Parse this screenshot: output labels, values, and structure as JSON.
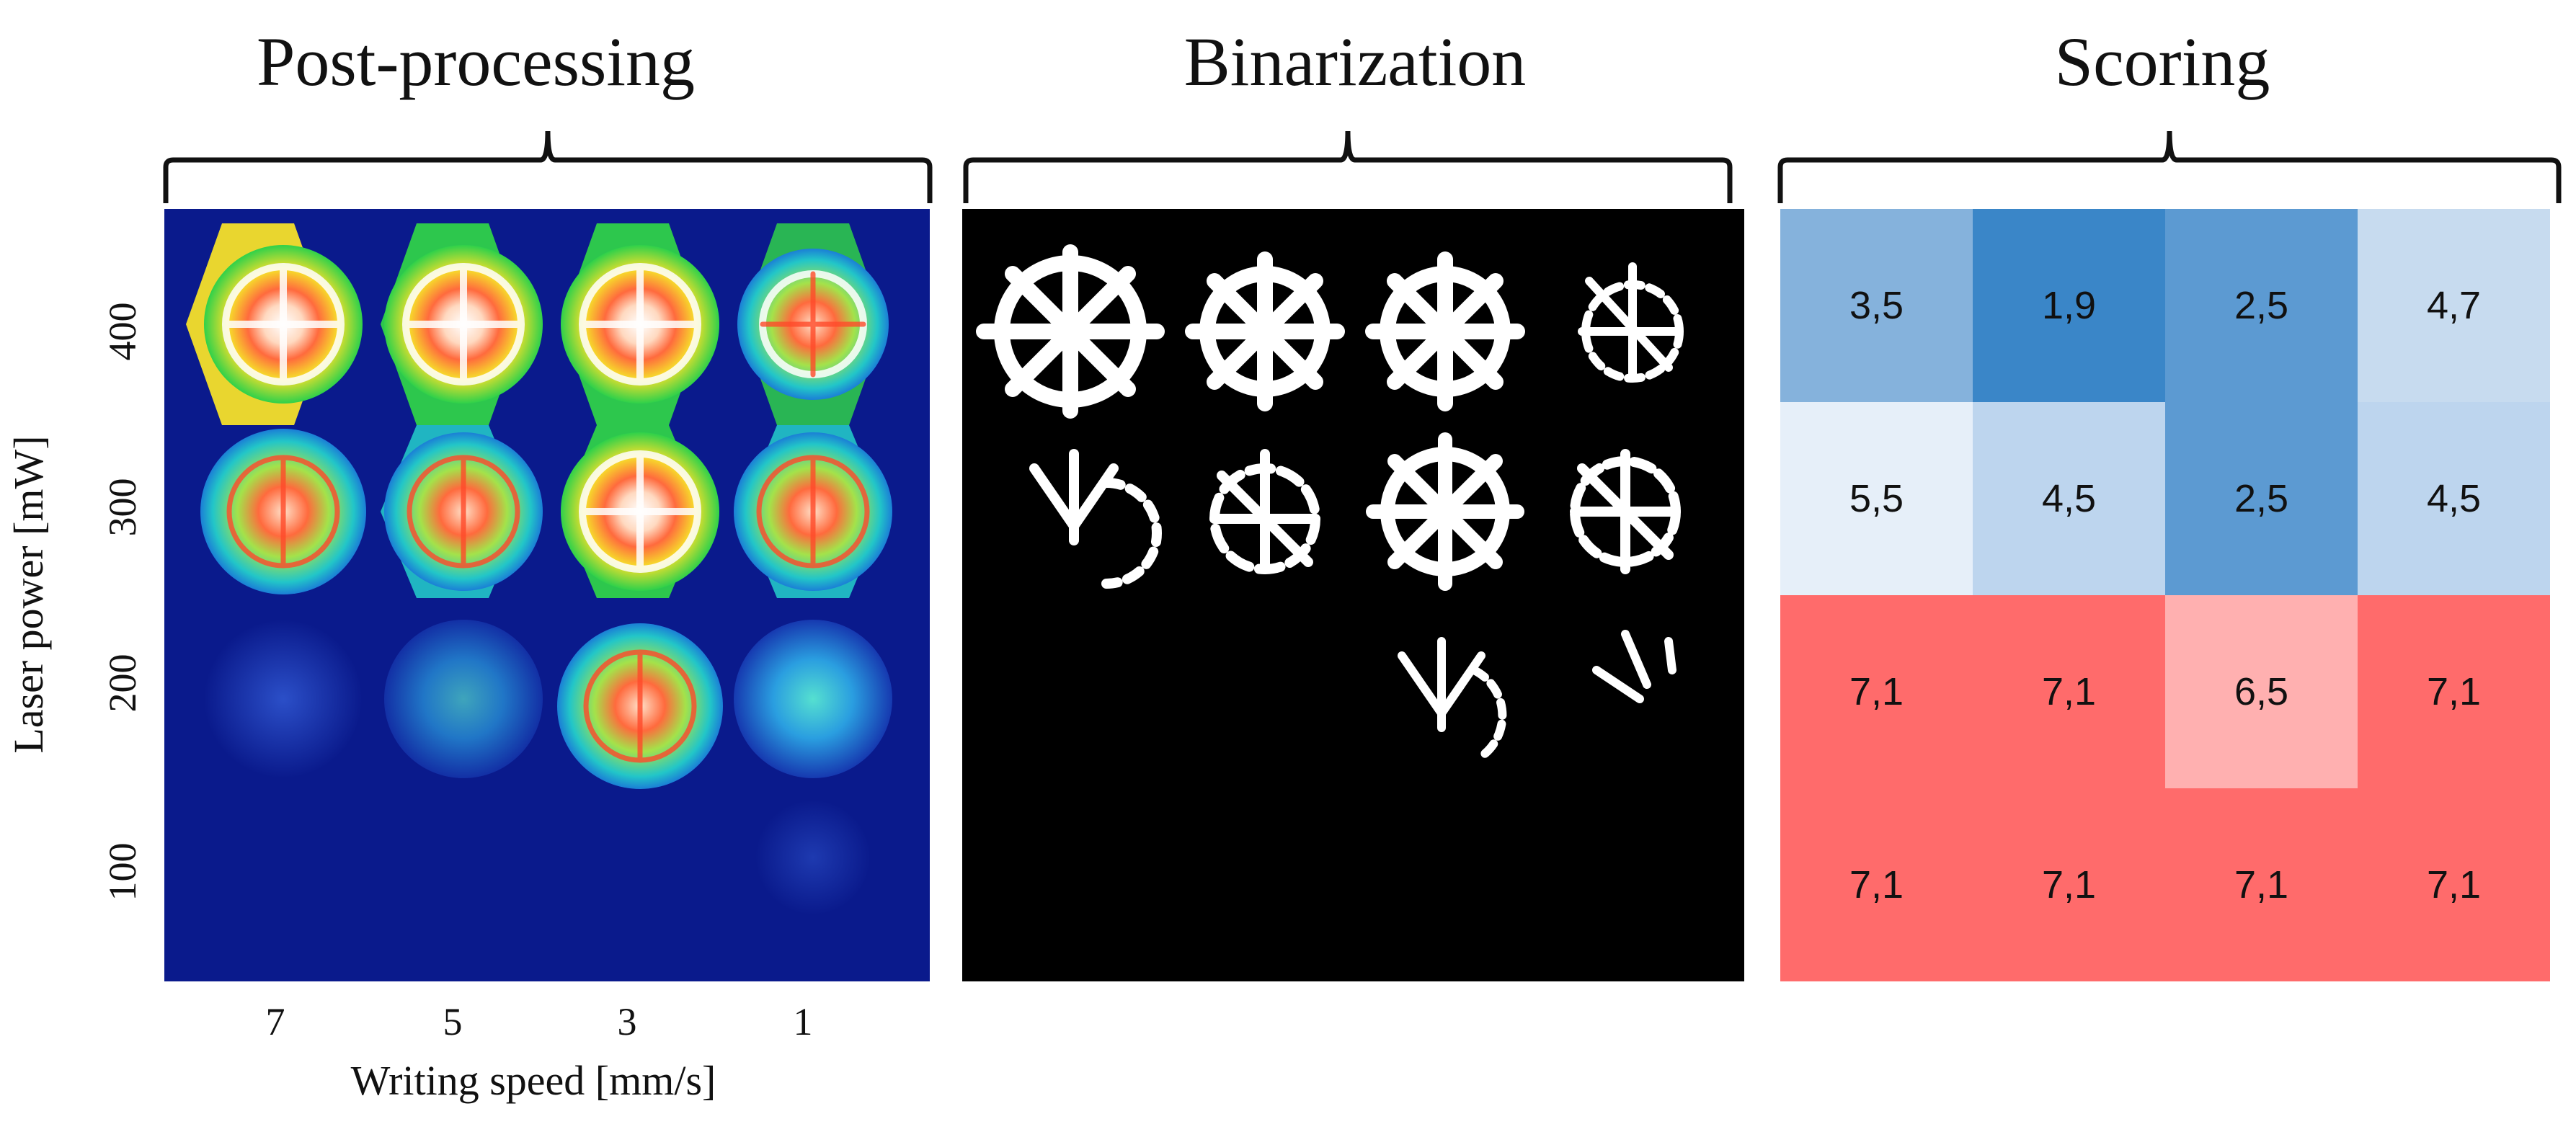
{
  "titles": {
    "post_processing": "Post-processing",
    "binarization": "Binarization",
    "scoring": "Scoring"
  },
  "axes": {
    "ylabel": "Laser power [mW]",
    "xlabel": "Writing speed [mm/s]",
    "y_ticks": [
      "400",
      "300",
      "200",
      "100"
    ],
    "x_ticks": [
      "7",
      "5",
      "3",
      "1"
    ]
  },
  "colors": {
    "thermal_background": "#0a1a8c",
    "binarization_background": "#000000",
    "scoring_good": "#3a86c8",
    "scoring_bad": "#ff6b6b"
  },
  "scoring": {
    "rows": [
      [
        "3,5",
        "1,9",
        "2,5",
        "4,7"
      ],
      [
        "5,5",
        "4,5",
        "2,5",
        "4,5"
      ],
      [
        "7,1",
        "7,1",
        "6,5",
        "7,1"
      ],
      [
        "7,1",
        "7,1",
        "7,1",
        "7,1"
      ]
    ],
    "blue_cells": [
      [
        "#85b2dc",
        "#3a86c8",
        "#5c9ad2",
        "#c7dbef"
      ],
      [
        "#e6eff9",
        "#bdd5ee",
        "#5c9ad2",
        "#bdd5ee"
      ]
    ]
  }
}
